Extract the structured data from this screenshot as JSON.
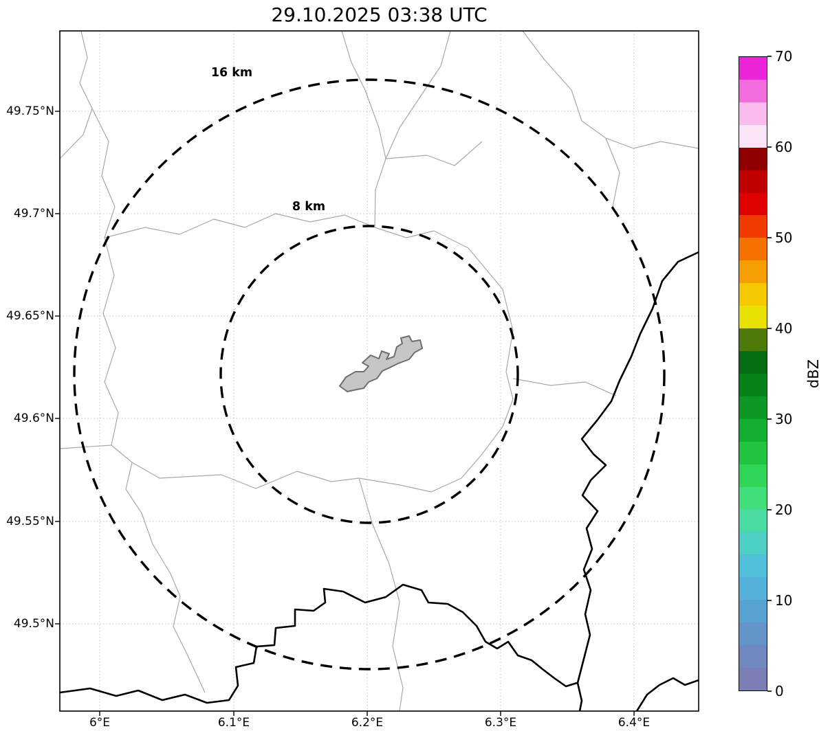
{
  "title": "29.10.2025 03:38 UTC",
  "map": {
    "ring_labels": [
      "16 km",
      "8 km"
    ]
  },
  "axes": {
    "x_ticks": [
      "6°E",
      "6.1°E",
      "6.2°E",
      "6.3°E",
      "6.4°E"
    ],
    "y_ticks": [
      "49.75°N",
      "49.7°N",
      "49.65°N",
      "49.6°N",
      "49.55°N",
      "49.5°N"
    ]
  },
  "colorbar": {
    "label": "dBZ",
    "min": 0,
    "max": 70,
    "tick_labels": [
      "70",
      "60",
      "50",
      "40",
      "30",
      "20",
      "10",
      "0"
    ],
    "colors": [
      "#7a7eb5",
      "#6f89c0",
      "#6394ca",
      "#58a2d3",
      "#53b1da",
      "#50c0da",
      "#4ecfc3",
      "#49dba2",
      "#3fe07c",
      "#2fd658",
      "#20c441",
      "#14ae30",
      "#0b9824",
      "#06821a",
      "#046c12",
      "#4f7a0a",
      "#e8e000",
      "#f5c800",
      "#f59e00",
      "#f57200",
      "#f03a00",
      "#e00000",
      "#c00000",
      "#8e0000",
      "#fce4f7",
      "#f9bcec",
      "#f36cdd",
      "#ec25d8"
    ]
  }
}
